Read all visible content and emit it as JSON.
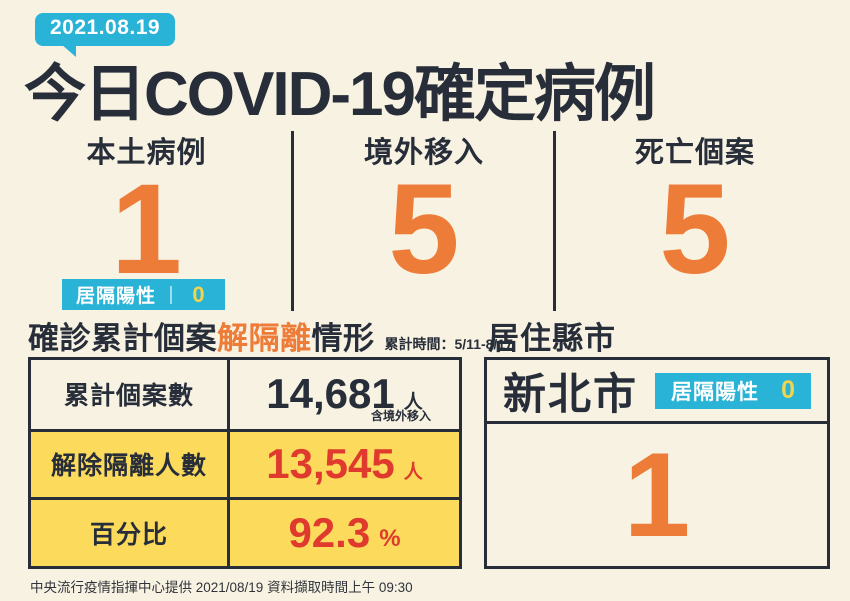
{
  "colors": {
    "background": "#f8f2e3",
    "dark": "#272e39",
    "cyan": "#29b3d6",
    "orange": "#ed7c38",
    "row_yellow": "#fbda5c",
    "red": "#df3a2d",
    "badge_zero_yellow": "#f3d44d"
  },
  "header": {
    "date_badge": "2021.08.19",
    "title": "今日COVID-19確定病例"
  },
  "stats": [
    {
      "label": "本土病例",
      "value": "1",
      "badge": {
        "label": "居隔陽性",
        "value": "0"
      }
    },
    {
      "label": "境外移入",
      "value": "5"
    },
    {
      "label": "死亡個案",
      "value": "5"
    }
  ],
  "release_section": {
    "title_prefix": "確診累計個案",
    "title_highlight": "解隔離",
    "title_suffix": "情形",
    "period_label": "累計時間：5/11-8/17",
    "table_rows": [
      {
        "label": "累計個案數",
        "value": "14,681",
        "unit": "人",
        "note": "含境外移入"
      },
      {
        "label": "解除隔離人數",
        "value": "13,545",
        "unit": "人"
      },
      {
        "label": "百分比",
        "value": "92.3",
        "unit": "%"
      }
    ]
  },
  "residence_section": {
    "title": "居住縣市",
    "city": "新北市",
    "badge": {
      "label": "居隔陽性",
      "value": "0"
    },
    "count": "1"
  },
  "footer": {
    "text": "中央流行疫情指揮中心提供 2021/08/19 資料擷取時間上午 09:30"
  },
  "chart_data": {
    "type": "table",
    "title": "今日COVID-19確定病例",
    "date": "2021.08.19",
    "daily_stats": [
      {
        "label": "本土病例",
        "value": 1,
        "quarantine_positive": 0
      },
      {
        "label": "境外移入",
        "value": 5
      },
      {
        "label": "死亡個案",
        "value": 5
      }
    ],
    "release_summary": {
      "period": "5/11-8/17",
      "cumulative_cases": 14681,
      "cumulative_cases_note": "含境外移入",
      "released_from_isolation": 13545,
      "percentage": 92.3
    },
    "residence": [
      {
        "city": "新北市",
        "cases": 1,
        "quarantine_positive": 0
      }
    ],
    "source_note": "中央流行疫情指揮中心提供 2021/08/19 資料擷取時間上午 09:30"
  }
}
